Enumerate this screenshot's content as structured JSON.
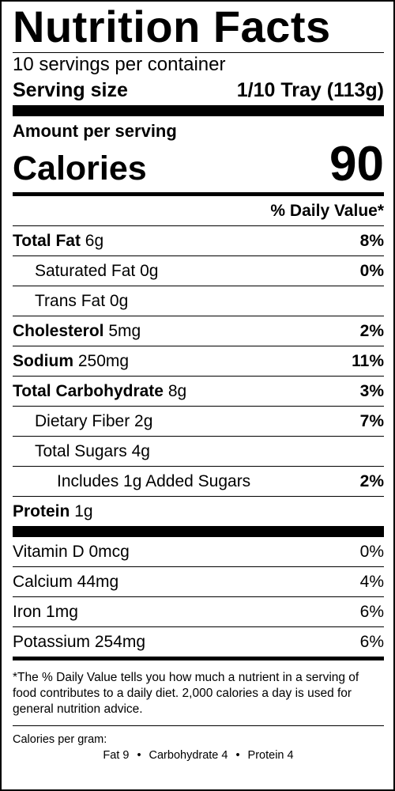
{
  "title": "Nutrition Facts",
  "servings_per_container": "10 servings per container",
  "serving_size": {
    "label": "Serving size",
    "value": "1/10 Tray (113g)"
  },
  "amount_per_serving": "Amount per serving",
  "calories": {
    "label": "Calories",
    "value": "90"
  },
  "daily_value_header": "% Daily Value*",
  "nutrients": [
    {
      "name": "Total Fat",
      "amount": "6g",
      "dv": "8%"
    },
    {
      "name": "Saturated Fat",
      "amount": "0g",
      "dv": "0%"
    },
    {
      "name": "Trans Fat",
      "amount": "0g",
      "dv": ""
    },
    {
      "name": "Cholesterol",
      "amount": "5mg",
      "dv": "2%"
    },
    {
      "name": "Sodium",
      "amount": "250mg",
      "dv": "11%"
    },
    {
      "name": "Total Carbohydrate",
      "amount": "8g",
      "dv": "3%"
    },
    {
      "name": "Dietary Fiber",
      "amount": "2g",
      "dv": "7%"
    },
    {
      "name": "Total Sugars",
      "amount": "4g",
      "dv": ""
    },
    {
      "name": "Includes 1g Added Sugars",
      "amount": "",
      "dv": "2%"
    },
    {
      "name": "Protein",
      "amount": "1g",
      "dv": ""
    }
  ],
  "vitamins": [
    {
      "name": "Vitamin D 0mcg",
      "dv": "0%"
    },
    {
      "name": "Calcium 44mg",
      "dv": "4%"
    },
    {
      "name": "Iron 1mg",
      "dv": "6%"
    },
    {
      "name": "Potassium 254mg",
      "dv": "6%"
    }
  ],
  "footnote": "*The % Daily Value tells you how much a nutrient in a serving of food contributes to a daily diet. 2,000 calories a day is used for general nutrition advice.",
  "calories_per_gram": {
    "label": "Calories per gram:",
    "fat": "Fat 9",
    "carbohydrate": "Carbohydrate 4",
    "protein": "Protein 4",
    "separator": "•"
  }
}
